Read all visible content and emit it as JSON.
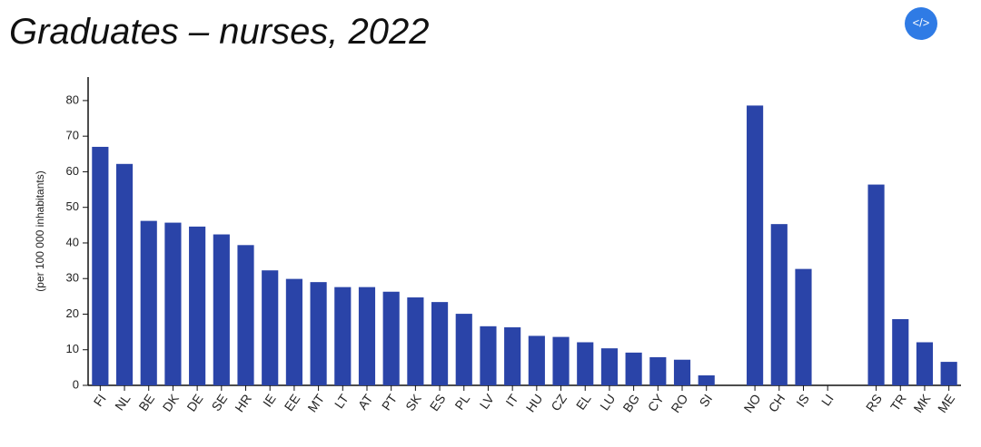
{
  "chart_data": {
    "type": "bar",
    "title": "Graduates – nurses, 2022",
    "y_label": "(per 100 000 inhabitants)",
    "embed_button": "</>",
    "categories": [
      "FI",
      "NL",
      "BE",
      "DK",
      "DE",
      "SE",
      "HR",
      "IE",
      "EE",
      "MT",
      "LT",
      "AT",
      "PT",
      "SK",
      "ES",
      "PL",
      "LV",
      "IT",
      "HU",
      "CZ",
      "EL",
      "LU",
      "BG",
      "CY",
      "RO",
      "SI",
      null,
      "NO",
      "CH",
      "IS",
      "LI",
      null,
      "RS",
      "TR",
      "MK",
      "ME"
    ],
    "values": [
      67.0,
      62.2,
      46.2,
      45.7,
      44.6,
      42.4,
      39.4,
      32.3,
      29.9,
      29.0,
      27.6,
      27.6,
      26.3,
      24.7,
      23.4,
      20.1,
      16.6,
      16.3,
      13.9,
      13.6,
      12.1,
      10.4,
      9.2,
      7.9,
      7.2,
      2.8,
      null,
      78.6,
      45.3,
      32.7,
      null,
      null,
      56.4,
      18.6,
      12.1,
      6.6
    ],
    "color": "#2a44a8",
    "ylim": [
      0,
      86.6
    ],
    "yticks": [
      0,
      10,
      20,
      30,
      40,
      50,
      60,
      70,
      80
    ],
    "grid": false
  }
}
